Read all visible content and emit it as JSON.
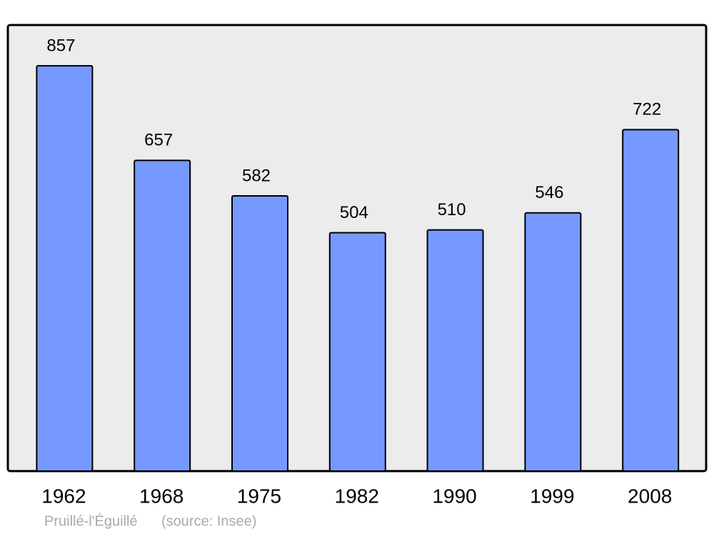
{
  "chart_data": {
    "type": "bar",
    "categories": [
      "1962",
      "1968",
      "1975",
      "1982",
      "1990",
      "1999",
      "2008"
    ],
    "values": [
      857,
      657,
      582,
      504,
      510,
      546,
      722
    ],
    "color": "#7599ff",
    "place": "Pruillé-l'Éguillé",
    "source": "(source: Insee)"
  }
}
